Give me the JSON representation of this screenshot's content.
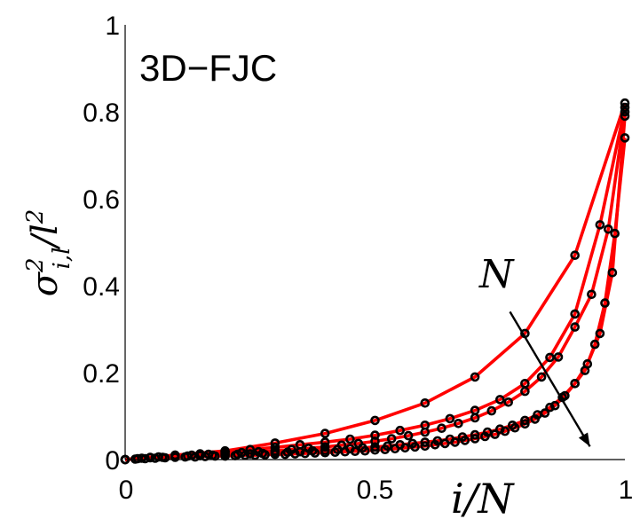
{
  "chart_data": {
    "type": "line",
    "title": "3D−FJC",
    "xlabel": "i/N",
    "ylabel": "σ²i,l/l²",
    "xlim": [
      0,
      1
    ],
    "ylim": [
      0,
      1
    ],
    "xticks": [
      0,
      0.5,
      1
    ],
    "xtick_labels": [
      "0",
      "0.5",
      "1"
    ],
    "yticks": [
      0,
      0.2,
      0.4,
      0.6,
      0.8,
      1
    ],
    "ytick_labels": [
      "0",
      "0.2",
      "0.4",
      "0.6",
      "0.8",
      "1"
    ],
    "grid": false,
    "legend": "none",
    "line_color": "#ff0000",
    "marker_color": "#000000",
    "annotation": {
      "text": "N",
      "arrow_from": [
        0.77,
        0.34
      ],
      "arrow_to": [
        0.93,
        0.03
      ]
    },
    "series": [
      {
        "x": [
          0,
          0.1,
          0.2,
          0.3,
          0.4,
          0.5,
          0.6,
          0.7,
          0.8,
          0.9,
          1.0
        ],
        "y": [
          0.0,
          0.01,
          0.02,
          0.038,
          0.06,
          0.09,
          0.13,
          0.19,
          0.29,
          0.47,
          0.82
        ]
      },
      {
        "x": [
          0,
          0.05,
          0.1,
          0.15,
          0.2,
          0.25,
          0.3,
          0.35,
          0.4,
          0.45,
          0.5,
          0.55,
          0.6,
          0.65,
          0.7,
          0.75,
          0.8,
          0.85,
          0.9,
          0.95,
          1.0
        ],
        "y": [
          0.0,
          0.005,
          0.01,
          0.013,
          0.018,
          0.023,
          0.028,
          0.034,
          0.04,
          0.047,
          0.056,
          0.067,
          0.079,
          0.094,
          0.113,
          0.138,
          0.175,
          0.235,
          0.335,
          0.54,
          0.81
        ]
      },
      {
        "x": [
          0,
          0.0333,
          0.0667,
          0.1,
          0.1333,
          0.1667,
          0.2,
          0.2333,
          0.2667,
          0.3,
          0.3333,
          0.3667,
          0.4,
          0.4333,
          0.4667,
          0.5,
          0.5333,
          0.5667,
          0.6,
          0.6333,
          0.6667,
          0.7,
          0.7333,
          0.7667,
          0.8,
          0.8333,
          0.8667,
          0.9,
          0.9333,
          0.9667,
          1.0
        ],
        "y": [
          0.0,
          0.003,
          0.006,
          0.008,
          0.01,
          0.012,
          0.014,
          0.016,
          0.018,
          0.02,
          0.023,
          0.026,
          0.029,
          0.033,
          0.037,
          0.042,
          0.048,
          0.055,
          0.063,
          0.072,
          0.083,
          0.096,
          0.112,
          0.132,
          0.157,
          0.19,
          0.236,
          0.305,
          0.38,
          0.53,
          0.8
        ]
      },
      {
        "x": [
          0,
          0.025,
          0.05,
          0.075,
          0.1,
          0.125,
          0.15,
          0.175,
          0.2,
          0.225,
          0.25,
          0.275,
          0.3,
          0.325,
          0.35,
          0.375,
          0.4,
          0.425,
          0.45,
          0.475,
          0.5,
          0.525,
          0.55,
          0.575,
          0.6,
          0.625,
          0.65,
          0.675,
          0.7,
          0.725,
          0.75,
          0.775,
          0.8,
          0.825,
          0.85,
          0.875,
          0.9,
          0.925,
          0.95,
          0.975,
          1.0
        ],
        "y": [
          0.0,
          0.002,
          0.004,
          0.005,
          0.007,
          0.008,
          0.009,
          0.01,
          0.011,
          0.012,
          0.013,
          0.014,
          0.015,
          0.017,
          0.018,
          0.02,
          0.021,
          0.023,
          0.025,
          0.027,
          0.029,
          0.031,
          0.034,
          0.037,
          0.04,
          0.043,
          0.047,
          0.052,
          0.057,
          0.063,
          0.07,
          0.079,
          0.09,
          0.103,
          0.12,
          0.143,
          0.175,
          0.22,
          0.29,
          0.43,
          0.79
        ]
      },
      {
        "x": [
          0,
          0.02,
          0.04,
          0.06,
          0.08,
          0.1,
          0.12,
          0.14,
          0.16,
          0.18,
          0.2,
          0.22,
          0.24,
          0.26,
          0.28,
          0.3,
          0.32,
          0.34,
          0.36,
          0.38,
          0.4,
          0.42,
          0.44,
          0.46,
          0.48,
          0.5,
          0.52,
          0.54,
          0.56,
          0.58,
          0.6,
          0.62,
          0.64,
          0.66,
          0.68,
          0.7,
          0.72,
          0.74,
          0.76,
          0.78,
          0.8,
          0.82,
          0.84,
          0.86,
          0.88,
          0.9,
          0.92,
          0.94,
          0.96,
          0.98,
          1.0
        ],
        "y": [
          0.0,
          0.001,
          0.002,
          0.003,
          0.004,
          0.005,
          0.006,
          0.006,
          0.007,
          0.008,
          0.008,
          0.009,
          0.01,
          0.01,
          0.011,
          0.012,
          0.012,
          0.013,
          0.014,
          0.015,
          0.016,
          0.017,
          0.018,
          0.019,
          0.02,
          0.022,
          0.023,
          0.025,
          0.027,
          0.029,
          0.031,
          0.034,
          0.037,
          0.04,
          0.044,
          0.048,
          0.053,
          0.058,
          0.065,
          0.073,
          0.082,
          0.093,
          0.107,
          0.124,
          0.147,
          0.175,
          0.205,
          0.265,
          0.36,
          0.52,
          0.74
        ]
      }
    ]
  }
}
